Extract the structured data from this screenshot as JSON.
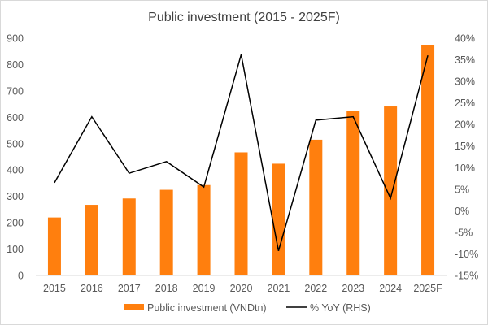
{
  "chart_data": {
    "type": "bar",
    "title": "Public investment (2015 - 2025F)",
    "categories": [
      "2015",
      "2016",
      "2017",
      "2018",
      "2019",
      "2020",
      "2021",
      "2022",
      "2023",
      "2024",
      "2025F"
    ],
    "series": [
      {
        "name": "Public investment (VNDtn)",
        "type": "bar",
        "axis": "left",
        "color": "#ff7f0e",
        "values": [
          220,
          268,
          292,
          325,
          343,
          467,
          424,
          515,
          625,
          641,
          875
        ]
      },
      {
        "name": "% YoY (RHS)",
        "type": "line",
        "axis": "right",
        "color": "#000000",
        "values": [
          6.5,
          21.8,
          8.7,
          11.4,
          5.5,
          36.2,
          -9.3,
          21.0,
          21.8,
          2.9,
          36.0
        ]
      }
    ],
    "y_left": {
      "range": [
        0,
        900
      ],
      "ticks": [
        0,
        100,
        200,
        300,
        400,
        500,
        600,
        700,
        800,
        900
      ],
      "tick_labels": [
        "0",
        "100",
        "200",
        "300",
        "400",
        "500",
        "600",
        "700",
        "800",
        "900"
      ]
    },
    "y_right": {
      "range": [
        -15,
        40
      ],
      "ticks": [
        -15,
        -10,
        -5,
        0,
        5,
        10,
        15,
        20,
        25,
        30,
        35,
        40
      ],
      "tick_labels": [
        "-15%",
        "-10%",
        "-5%",
        "0%",
        "5%",
        "10%",
        "15%",
        "20%",
        "25%",
        "30%",
        "35%",
        "40%"
      ]
    },
    "grid": false,
    "legend_position": "bottom"
  }
}
